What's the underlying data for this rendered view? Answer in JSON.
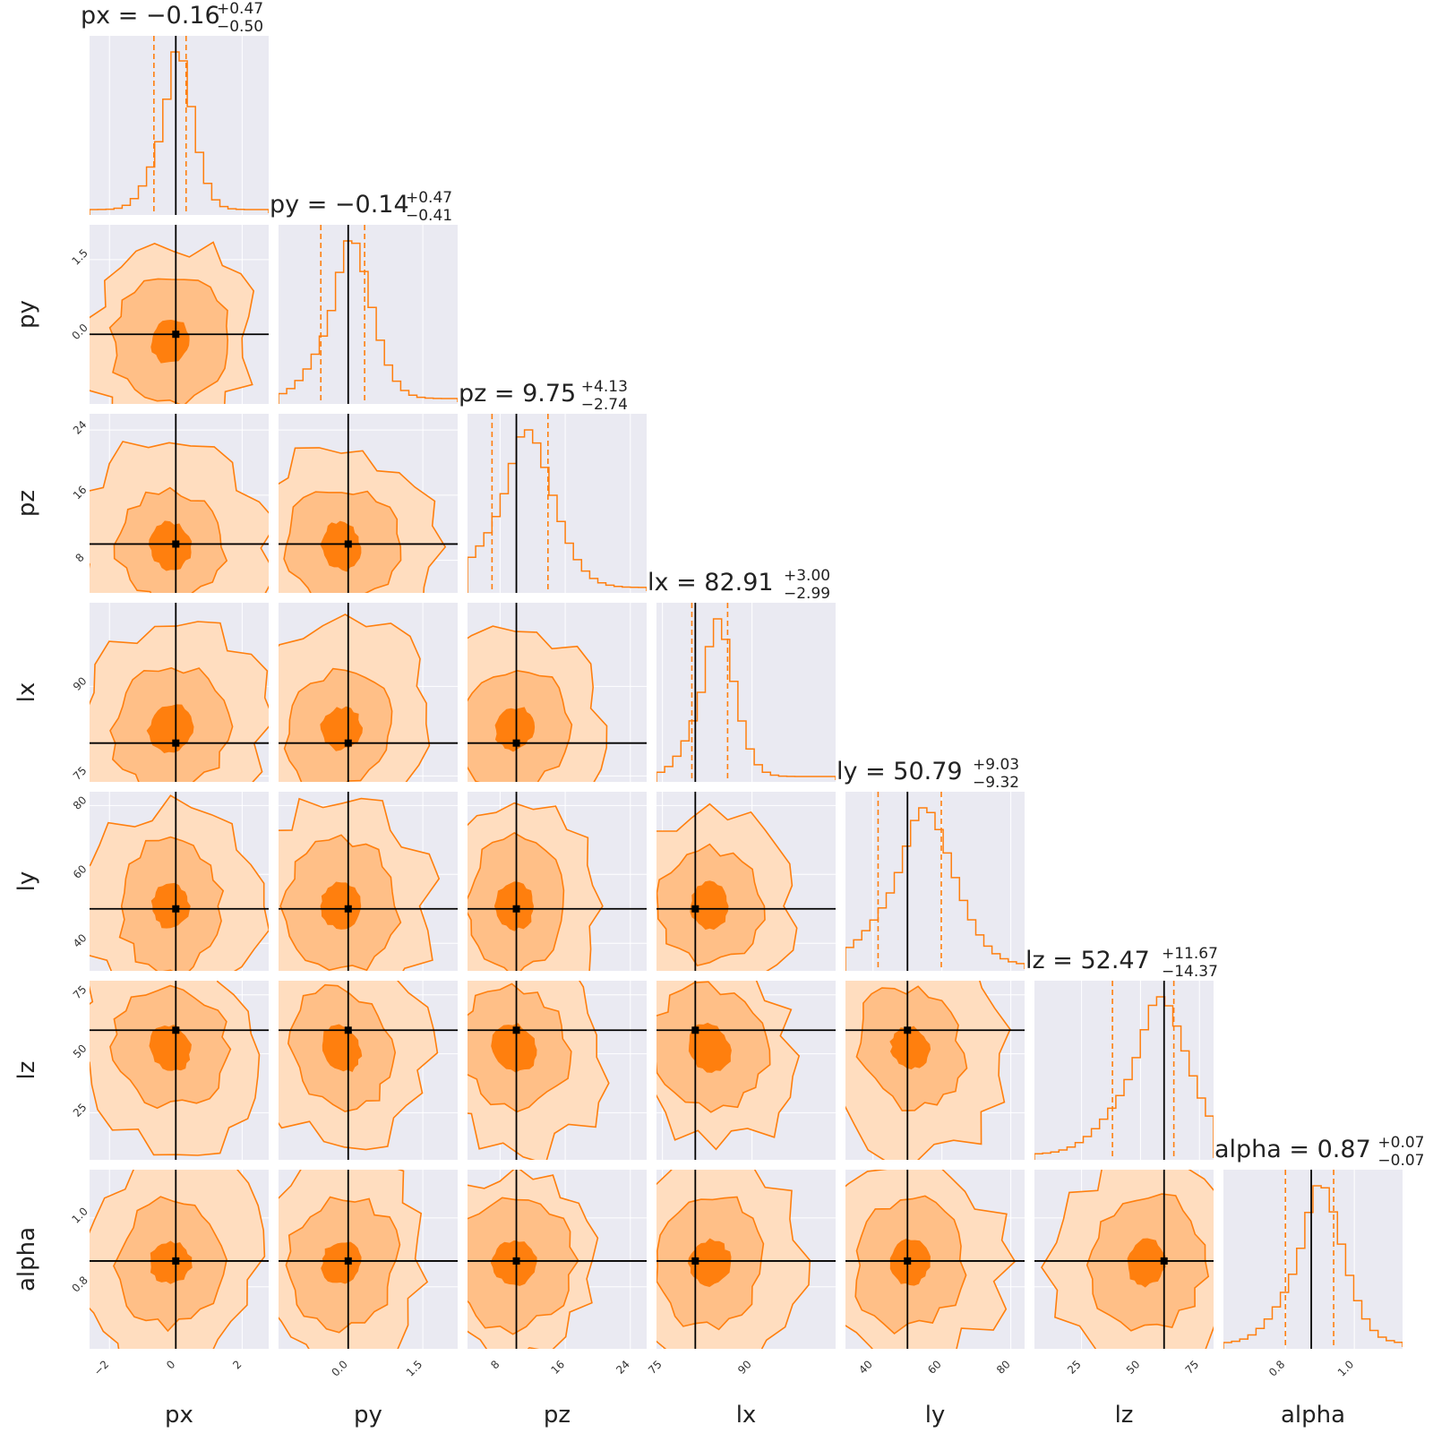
{
  "colors": {
    "accent": "#ff7f0e",
    "panel_background": "#eaeaf2",
    "truth": "#000000",
    "contour_fills": [
      "#ffddbf",
      "#ffbf87",
      "#ff7f0e"
    ]
  },
  "chart_data": {
    "type": "corner",
    "grid": true,
    "params": [
      {
        "name": "px",
        "label": "px",
        "range": [
          -2.6,
          2.8
        ],
        "ticks": [
          -2,
          0,
          2
        ],
        "tick_labels": [
          "−2",
          "0",
          "2"
        ],
        "truth": 0.0,
        "title": {
          "prefix": "px = −0.16",
          "upper": "+0.47",
          "lower": "−0.50"
        },
        "median": -0.16,
        "err_plus": 0.47,
        "err_minus": 0.5
      },
      {
        "name": "py",
        "label": "py",
        "range": [
          -1.4,
          2.2
        ],
        "ticks": [
          0.0,
          1.5
        ],
        "tick_labels": [
          "0.0",
          "1.5"
        ],
        "truth": 0.0,
        "title": {
          "prefix": "py = −0.14",
          "upper": "+0.47",
          "lower": "−0.41"
        },
        "median": -0.14,
        "err_plus": 0.47,
        "err_minus": 0.41
      },
      {
        "name": "pz",
        "label": "pz",
        "range": [
          4,
          26
        ],
        "ticks": [
          8,
          16,
          24
        ],
        "tick_labels": [
          "8",
          "16",
          "24"
        ],
        "truth": 10.0,
        "title": {
          "prefix": "pz = 9.75",
          "upper": "+4.13",
          "lower": "−2.74"
        },
        "median": 9.75,
        "err_plus": 4.13,
        "err_minus": 2.74
      },
      {
        "name": "lx",
        "label": "lx",
        "range": [
          74,
          104
        ],
        "ticks": [
          75,
          90
        ],
        "tick_labels": [
          "75",
          "90"
        ],
        "truth": 80.5,
        "title": {
          "prefix": "lx = 82.91",
          "upper": "+3.00",
          "lower": "−2.99"
        },
        "median": 82.91,
        "err_plus": 3.0,
        "err_minus": 2.99
      },
      {
        "name": "ly",
        "label": "ly",
        "range": [
          32,
          84
        ],
        "ticks": [
          40,
          60,
          80
        ],
        "tick_labels": [
          "40",
          "60",
          "80"
        ],
        "truth": 50.0,
        "title": {
          "prefix": "ly = 50.79",
          "upper": "+9.03",
          "lower": "−9.32"
        },
        "median": 50.79,
        "err_plus": 9.03,
        "err_minus": 9.32
      },
      {
        "name": "lz",
        "label": "lz",
        "range": [
          5,
          81
        ],
        "ticks": [
          25,
          50,
          75
        ],
        "tick_labels": [
          "25",
          "50",
          "75"
        ],
        "truth": 60.0,
        "title": {
          "prefix": "lz = 52.47",
          "upper": "+11.67",
          "lower": "−14.37"
        },
        "median": 52.47,
        "err_plus": 11.67,
        "err_minus": 14.37
      },
      {
        "name": "alpha",
        "label": "alpha",
        "range": [
          0.62,
          1.14
        ],
        "ticks": [
          0.8,
          1.0
        ],
        "tick_labels": [
          "0.8",
          "1.0"
        ],
        "truth": 0.875,
        "title": {
          "prefix": "alpha = 0.87",
          "upper": "+0.07",
          "lower": "−0.07"
        },
        "median": 0.87,
        "err_plus": 0.07,
        "err_minus": 0.07
      }
    ]
  }
}
